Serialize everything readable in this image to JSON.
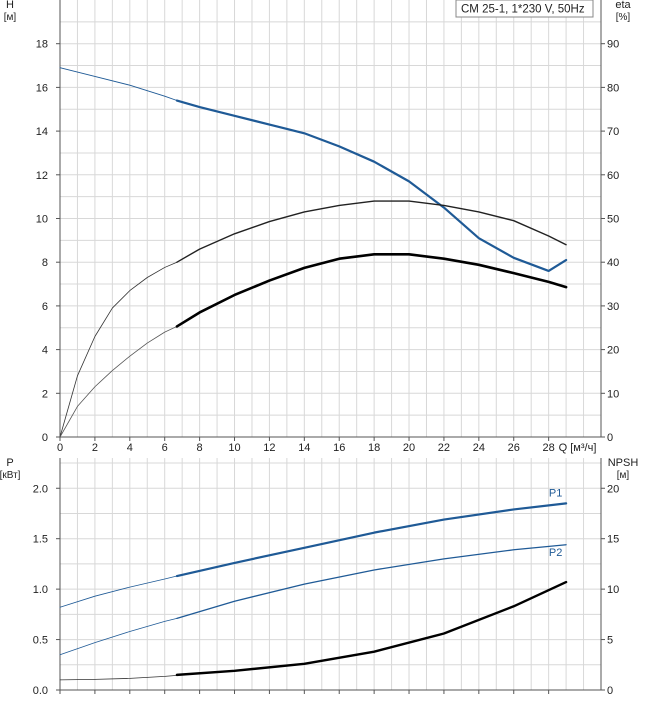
{
  "legend_text": "CM 25-1, 1*230 V, 50Hz",
  "chart_data": [
    {
      "type": "line",
      "name": "performance",
      "xlabel": "Q [м³/ч]",
      "xlim": [
        0,
        31
      ],
      "x_ticks": [
        0,
        2,
        4,
        6,
        8,
        10,
        12,
        14,
        16,
        18,
        20,
        22,
        24,
        26,
        28
      ],
      "ylabel_left": [
        "H",
        "[м]"
      ],
      "ylim_left": [
        0,
        20
      ],
      "y_ticks_left": [
        0,
        2,
        4,
        6,
        8,
        10,
        12,
        14,
        16,
        18
      ],
      "ylabel_right": [
        "eta",
        "[%]"
      ],
      "ylim_right": [
        0,
        100
      ],
      "y_ticks_right": [
        0,
        10,
        20,
        30,
        40,
        50,
        60,
        70,
        80,
        90
      ],
      "grid": true,
      "series": [
        {
          "axis": "left",
          "color": "#1f5a96",
          "x": [
            0,
            2,
            4,
            6,
            6.7
          ],
          "y": [
            16.9,
            16.5,
            16.1,
            15.6,
            15.4
          ],
          "width": 0.9
        },
        {
          "axis": "left",
          "color": "#1f5a96",
          "x": [
            6.7,
            8,
            10,
            12,
            14,
            16,
            18,
            20,
            22,
            24,
            26,
            28,
            29
          ],
          "y": [
            15.4,
            15.1,
            14.7,
            14.3,
            13.9,
            13.3,
            12.6,
            11.7,
            10.5,
            9.1,
            8.2,
            7.6,
            8.1
          ],
          "width": 2.2
        },
        {
          "axis": "right",
          "color": "#333333",
          "x": [
            0,
            1,
            2,
            3,
            4,
            5,
            6,
            6.7
          ],
          "y": [
            0,
            14,
            23,
            29.5,
            33.5,
            36.5,
            38.8,
            40
          ],
          "width": 0.8
        },
        {
          "axis": "right",
          "color": "#222222",
          "x": [
            6.7,
            8,
            10,
            12,
            14,
            16,
            18,
            20,
            22,
            24,
            26,
            28,
            29
          ],
          "y": [
            40,
            43,
            46.5,
            49.3,
            51.5,
            53,
            54,
            54,
            53,
            51.5,
            49.5,
            46,
            44
          ],
          "width": 1.4
        },
        {
          "axis": "right",
          "color": "#555555",
          "x": [
            0,
            1,
            2,
            3,
            4,
            5,
            6,
            6.7
          ],
          "y": [
            0,
            7,
            11.5,
            15.2,
            18.5,
            21.5,
            24,
            25.3
          ],
          "width": 0.8
        },
        {
          "axis": "right",
          "color": "#000000",
          "x": [
            6.7,
            8,
            10,
            12,
            14,
            16,
            18,
            20,
            22,
            24,
            26,
            28,
            29
          ],
          "y": [
            25.3,
            28.5,
            32.5,
            35.8,
            38.7,
            40.8,
            41.8,
            41.8,
            40.8,
            39.4,
            37.5,
            35.5,
            34.3
          ],
          "width": 2.6
        }
      ]
    },
    {
      "type": "line",
      "name": "power",
      "xlim": [
        0,
        31
      ],
      "ylabel_left": [
        "P",
        "[кВт]"
      ],
      "ylim_left": [
        0,
        2.3
      ],
      "y_ticks_left": [
        "0.0",
        "0.5",
        "1.0",
        "1.5",
        "2.0"
      ],
      "y_tick_values_left": [
        0,
        0.5,
        1.0,
        1.5,
        2.0
      ],
      "ylabel_right": [
        "NPSH",
        "[м]"
      ],
      "ylim_right": [
        0,
        23
      ],
      "y_ticks_right": [
        0,
        5,
        10,
        15,
        20
      ],
      "grid": true,
      "series": [
        {
          "axis": "left",
          "color": "#1f5a96",
          "x": [
            0,
            2,
            4,
            6,
            6.7
          ],
          "y": [
            0.82,
            0.93,
            1.02,
            1.1,
            1.13
          ],
          "width": 0.8
        },
        {
          "axis": "left",
          "color": "#1f5a96",
          "x": [
            6.7,
            10,
            14,
            18,
            22,
            26,
            29
          ],
          "y": [
            1.13,
            1.26,
            1.41,
            1.56,
            1.69,
            1.79,
            1.85
          ],
          "width": 2.2,
          "name": "P1",
          "label_at": [
            28.4,
            1.92
          ]
        },
        {
          "axis": "left",
          "color": "#1f5a96",
          "x": [
            0,
            2,
            4,
            6,
            6.7
          ],
          "y": [
            0.35,
            0.47,
            0.58,
            0.68,
            0.71
          ],
          "width": 0.8
        },
        {
          "axis": "left",
          "color": "#1f5a96",
          "x": [
            6.7,
            10,
            14,
            18,
            22,
            26,
            29
          ],
          "y": [
            0.71,
            0.88,
            1.05,
            1.19,
            1.3,
            1.39,
            1.44
          ],
          "width": 1.3,
          "name": "P2",
          "label_at": [
            28.4,
            1.33
          ]
        },
        {
          "axis": "right",
          "color": "#333333",
          "x": [
            0,
            2,
            4,
            6,
            6.7
          ],
          "y": [
            1.0,
            1.05,
            1.15,
            1.35,
            1.45
          ],
          "width": 0.8
        },
        {
          "axis": "right",
          "color": "#000000",
          "x": [
            6.7,
            10,
            14,
            18,
            22,
            26,
            29
          ],
          "y": [
            1.5,
            1.9,
            2.6,
            3.8,
            5.6,
            8.3,
            10.7
          ],
          "width": 2.4
        }
      ]
    }
  ]
}
